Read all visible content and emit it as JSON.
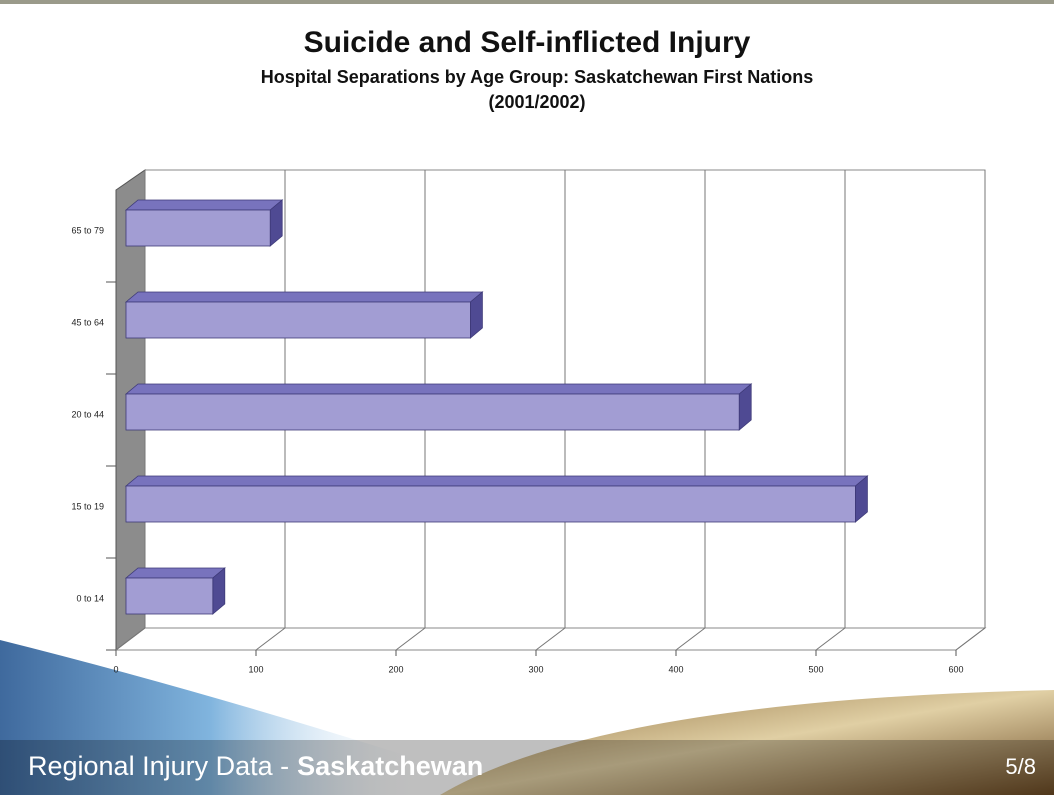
{
  "chart_data": {
    "type": "bar3d-horizontal",
    "title": "Suicide and Self-inflicted Injury",
    "subtitle": "Hospital Separations by Age Group: Saskatchewan First Nations",
    "period": "(2001/2002)",
    "categories": [
      "0 to 14",
      "15 to 19",
      "20 to 44",
      "45 to 64",
      "65 to 79"
    ],
    "values": [
      62,
      521,
      438,
      246,
      103
    ],
    "color": "#a29dd3",
    "xlim": [
      0,
      600
    ],
    "xticks": [
      0,
      100,
      200,
      300,
      400,
      500,
      600
    ],
    "grid": true
  },
  "footer": {
    "left": "Regional Injury Data -",
    "left_bold": "Saskatchewan",
    "page": "5/8"
  }
}
